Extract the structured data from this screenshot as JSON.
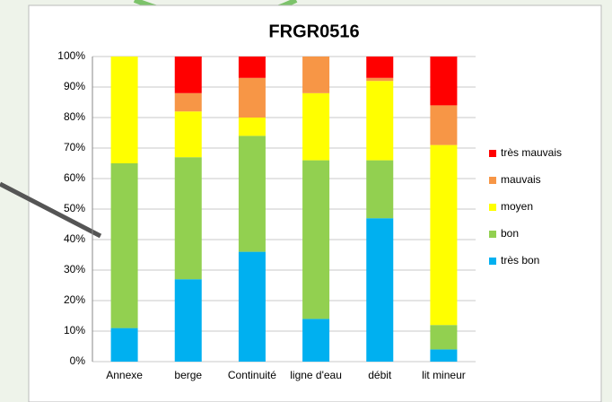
{
  "chart_data": {
    "type": "stacked_bar",
    "title": "FRGR0516",
    "categories": [
      "Annexe",
      "berge",
      "Continuité",
      "ligne d'eau",
      "débit",
      "lit mineur"
    ],
    "series": [
      {
        "name": "très bon",
        "color": "#00b0f0",
        "values": [
          11,
          27,
          36,
          14,
          47,
          4
        ]
      },
      {
        "name": "bon",
        "color": "#92d050",
        "values": [
          54,
          40,
          38,
          52,
          19,
          8
        ]
      },
      {
        "name": "moyen",
        "color": "#ffff00",
        "values": [
          35,
          15,
          6,
          22,
          26,
          59
        ]
      },
      {
        "name": "mauvais",
        "color": "#f79646",
        "values": [
          0,
          6,
          13,
          12,
          1,
          13
        ]
      },
      {
        "name": "très mauvais",
        "color": "#ff0000",
        "values": [
          0,
          12,
          7,
          0,
          7,
          16
        ]
      }
    ],
    "ylim": [
      0,
      100
    ],
    "yticks": [
      {
        "value": 0,
        "label": "0%"
      },
      {
        "value": 10,
        "label": "10%"
      },
      {
        "value": 20,
        "label": "20%"
      },
      {
        "value": 30,
        "label": "30%"
      },
      {
        "value": 40,
        "label": "40%"
      },
      {
        "value": 50,
        "label": "50%"
      },
      {
        "value": 60,
        "label": "60%"
      },
      {
        "value": 70,
        "label": "70%"
      },
      {
        "value": 80,
        "label": "80%"
      },
      {
        "value": 90,
        "label": "90%"
      },
      {
        "value": 100,
        "label": "100%"
      }
    ],
    "grid": true,
    "legend": "right"
  }
}
